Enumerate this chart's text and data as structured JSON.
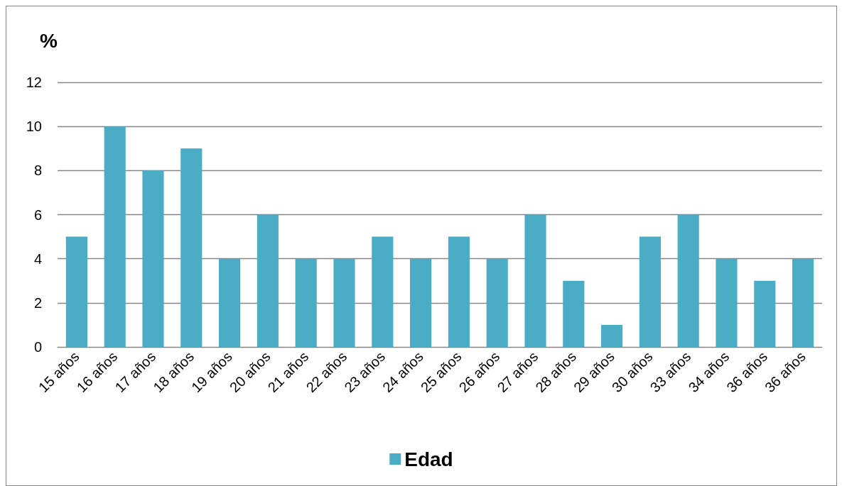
{
  "chart_data": {
    "type": "bar",
    "ylabel": "%",
    "categories": [
      "15 años",
      "16 años",
      "17 años",
      "18 años",
      "19 años",
      "20 años",
      "21 años",
      "22 años",
      "23 años",
      "24 años",
      "25 años",
      "26 años",
      "27 años",
      "28 años",
      "29 años",
      "30 años",
      "33 años",
      "34 años",
      "36 años",
      "36 años"
    ],
    "series": [
      {
        "name": "Edad",
        "color": "#4bacc6",
        "values": [
          5,
          10,
          8,
          9,
          4,
          6,
          4,
          4,
          5,
          4,
          5,
          4,
          6,
          3,
          1,
          5,
          6,
          4,
          3,
          4
        ]
      }
    ],
    "ylim": [
      0,
      12
    ],
    "yticks": [
      0,
      2,
      4,
      6,
      8,
      10,
      12
    ],
    "grid": "y",
    "legend": "bottom"
  }
}
